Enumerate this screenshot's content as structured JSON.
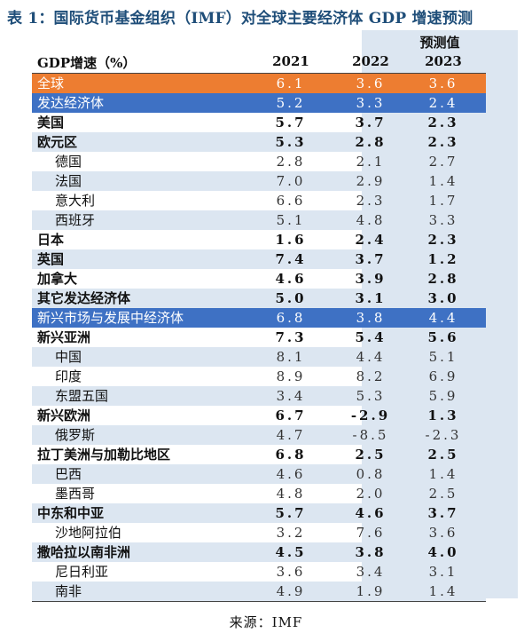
{
  "title": "表 1：国际货币基金组织（IMF）对全球主要经济体 GDP 增速预测",
  "header": {
    "forecast_label": "预测值",
    "metric_label": "GDP增速（%）",
    "years": [
      "2021",
      "2022",
      "2023"
    ]
  },
  "rows": [
    {
      "label": "全球",
      "values": [
        "6.1",
        "3.6",
        "3.6"
      ]
    },
    {
      "label": "发达经济体",
      "values": [
        "5.2",
        "3.3",
        "2.4"
      ]
    },
    {
      "label": "美国",
      "values": [
        "5.7",
        "3.7",
        "2.3"
      ]
    },
    {
      "label": "欧元区",
      "values": [
        "5.3",
        "2.8",
        "2.3"
      ]
    },
    {
      "label": "德国",
      "values": [
        "2.8",
        "2.1",
        "2.7"
      ]
    },
    {
      "label": "法国",
      "values": [
        "7.0",
        "2.9",
        "1.4"
      ]
    },
    {
      "label": "意大利",
      "values": [
        "6.6",
        "2.3",
        "1.7"
      ]
    },
    {
      "label": "西班牙",
      "values": [
        "5.1",
        "4.8",
        "3.3"
      ]
    },
    {
      "label": "日本",
      "values": [
        "1.6",
        "2.4",
        "2.3"
      ]
    },
    {
      "label": "英国",
      "values": [
        "7.4",
        "3.7",
        "1.2"
      ]
    },
    {
      "label": "加拿大",
      "values": [
        "4.6",
        "3.9",
        "2.8"
      ]
    },
    {
      "label": "其它发达经济体",
      "values": [
        "5.0",
        "3.1",
        "3.0"
      ]
    },
    {
      "label": "新兴市场与发展中经济体",
      "values": [
        "6.8",
        "3.8",
        "4.4"
      ]
    },
    {
      "label": "新兴亚洲",
      "values": [
        "7.3",
        "5.4",
        "5.6"
      ]
    },
    {
      "label": "中国",
      "values": [
        "8.1",
        "4.4",
        "5.1"
      ]
    },
    {
      "label": "印度",
      "values": [
        "8.9",
        "8.2",
        "6.9"
      ]
    },
    {
      "label": "东盟五国",
      "values": [
        "3.4",
        "5.3",
        "5.9"
      ]
    },
    {
      "label": "新兴欧洲",
      "values": [
        "6.7",
        "-2.9",
        "1.3"
      ]
    },
    {
      "label": "俄罗斯",
      "values": [
        "4.7",
        "-8.5",
        "-2.3"
      ]
    },
    {
      "label": "拉丁美洲与加勒比地区",
      "values": [
        "6.8",
        "2.5",
        "2.5"
      ]
    },
    {
      "label": "巴西",
      "values": [
        "4.6",
        "0.8",
        "1.4"
      ]
    },
    {
      "label": "墨西哥",
      "values": [
        "4.8",
        "2.0",
        "2.5"
      ]
    },
    {
      "label": "中东和中亚",
      "values": [
        "5.7",
        "4.6",
        "3.7"
      ]
    },
    {
      "label": "沙地阿拉伯",
      "values": [
        "3.2",
        "7.6",
        "3.6"
      ]
    },
    {
      "label": "撒哈拉以南非洲",
      "values": [
        "4.5",
        "3.8",
        "4.0"
      ]
    },
    {
      "label": "尼日利亚",
      "values": [
        "3.6",
        "3.4",
        "3.1"
      ]
    },
    {
      "label": "南非",
      "values": [
        "4.9",
        "1.9",
        "1.4"
      ]
    }
  ],
  "source": "来源：IMF",
  "colors": {
    "title": "#1f4e79",
    "highlight_orange": "#ed7d31",
    "highlight_blue": "#3e71c4",
    "stripe": "#dce6f1"
  }
}
